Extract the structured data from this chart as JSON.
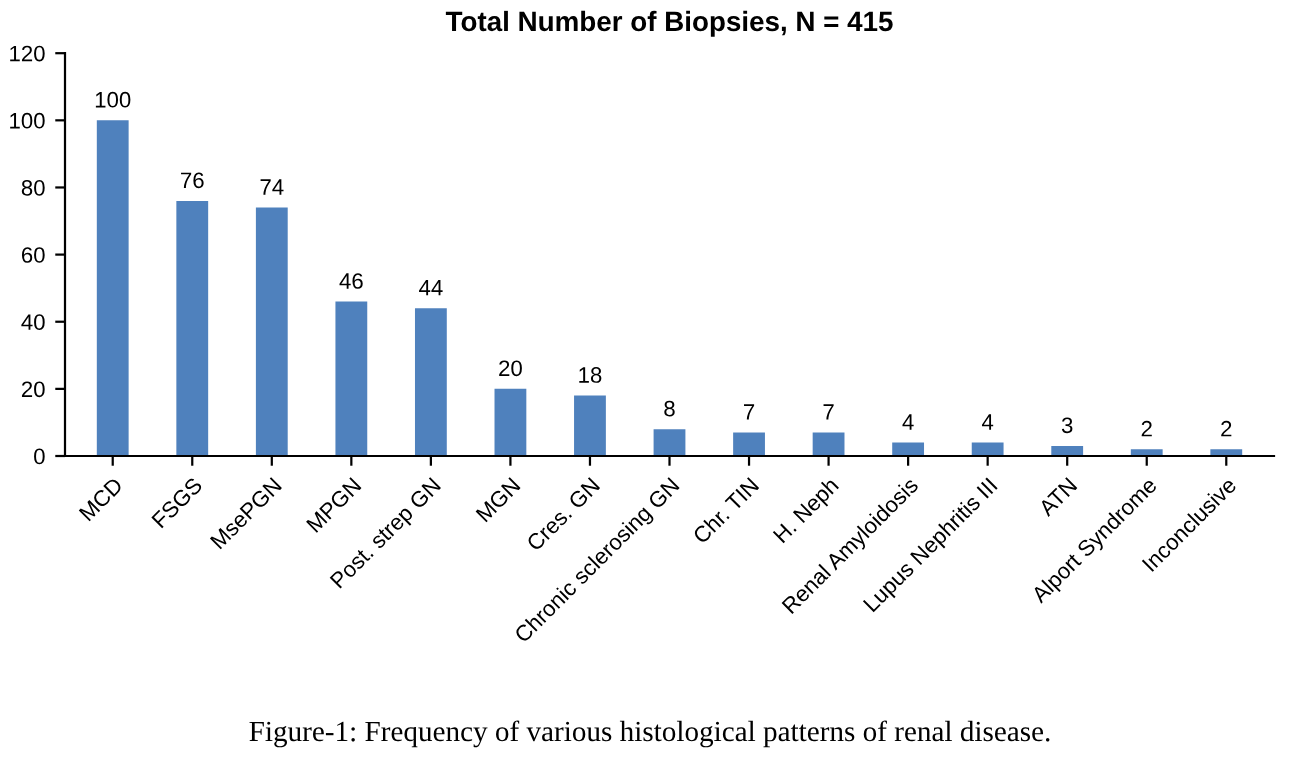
{
  "chart_data": {
    "type": "bar",
    "title": "Total Number of Biopsies, N = 415",
    "categories": [
      "MCD",
      "FSGS",
      "MsePGN",
      "MPGN",
      "Post. strep GN",
      "MGN",
      "Cres. GN",
      "Chronic sclerosing GN",
      "Chr. TIN",
      "H. Neph",
      "Renal Amyloidosis",
      "Lupus Nephritis III",
      "ATN",
      "Alport Syndrome",
      "Inconclusive"
    ],
    "values": [
      100,
      76,
      74,
      46,
      44,
      20,
      18,
      8,
      7,
      7,
      4,
      4,
      3,
      2,
      2
    ],
    "color": "#4f81bd",
    "data_labels": true,
    "grid": false,
    "ylim": [
      0,
      120
    ],
    "yticks": [
      0,
      20,
      40,
      60,
      80,
      100,
      120
    ],
    "annotations": [
      "Figure-1: Frequency of various histological patterns of renal disease."
    ]
  }
}
